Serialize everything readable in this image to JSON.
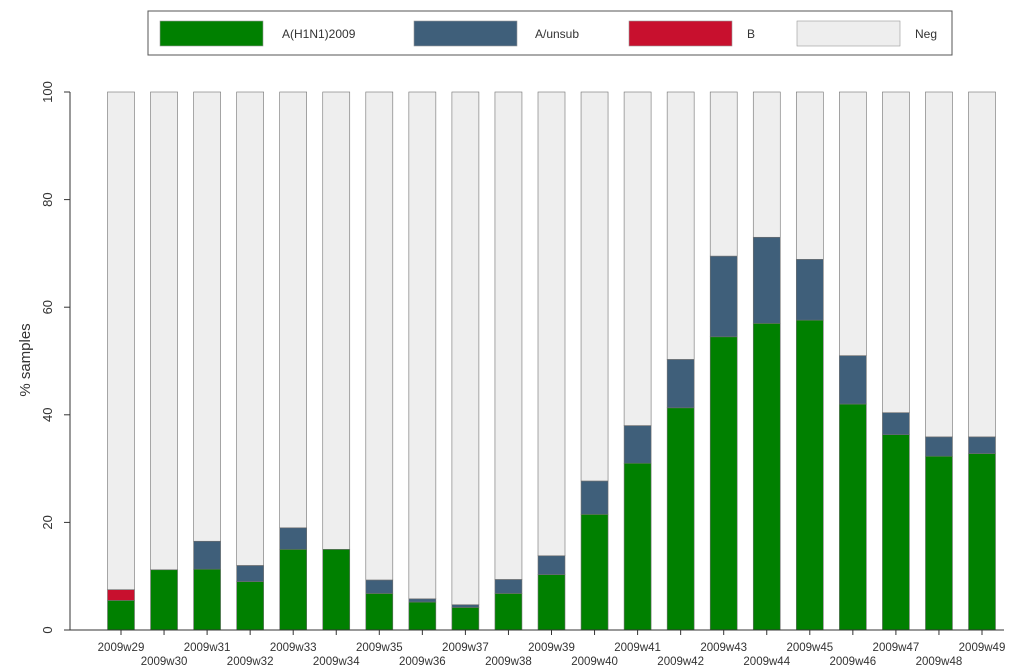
{
  "chart_data": {
    "type": "bar",
    "stacked": true,
    "percent_stacked": true,
    "ylabel": "% samples",
    "xlabel": "",
    "ylim": [
      0,
      100
    ],
    "yticks": [
      0,
      20,
      40,
      60,
      80,
      100
    ],
    "grid": false,
    "legend_position": "top",
    "categories": [
      "2009w29",
      "2009w30",
      "2009w31",
      "2009w32",
      "2009w33",
      "2009w34",
      "2009w35",
      "2009w36",
      "2009w37",
      "2009w38",
      "2009w39",
      "2009w40",
      "2009w41",
      "2009w42",
      "2009w43",
      "2009w44",
      "2009w45",
      "2009w46",
      "2009w47",
      "2009w48",
      "2009w49"
    ],
    "series": [
      {
        "name": "A(H1N1)2009",
        "color": "#008000",
        "values": [
          5.5,
          11.2,
          11.3,
          9.0,
          15.0,
          15.0,
          6.8,
          5.2,
          4.2,
          6.8,
          10.3,
          21.5,
          31.0,
          41.3,
          54.5,
          57.0,
          57.6,
          42.0,
          36.3,
          32.3,
          32.8
        ]
      },
      {
        "name": "A/unsub",
        "color": "#3f5f7a",
        "values": [
          0,
          0,
          5.2,
          3.0,
          4.0,
          0,
          2.5,
          0.6,
          0.5,
          2.6,
          3.5,
          6.2,
          7.0,
          9.0,
          15.0,
          16.0,
          11.3,
          9.0,
          4.1,
          3.6,
          3.1
        ]
      },
      {
        "name": "B",
        "color": "#c8102e",
        "values": [
          2.0,
          0,
          0,
          0,
          0,
          0,
          0,
          0,
          0,
          0,
          0,
          0,
          0,
          0,
          0,
          0,
          0,
          0,
          0,
          0,
          0
        ]
      },
      {
        "name": "Neg",
        "color": "#eeeeee",
        "values": [
          92.5,
          88.8,
          83.5,
          88.0,
          81.0,
          85.0,
          90.7,
          94.2,
          95.3,
          90.6,
          86.2,
          72.3,
          62.0,
          49.7,
          30.5,
          27.0,
          31.1,
          49.0,
          59.6,
          64.1,
          64.1
        ]
      }
    ]
  }
}
